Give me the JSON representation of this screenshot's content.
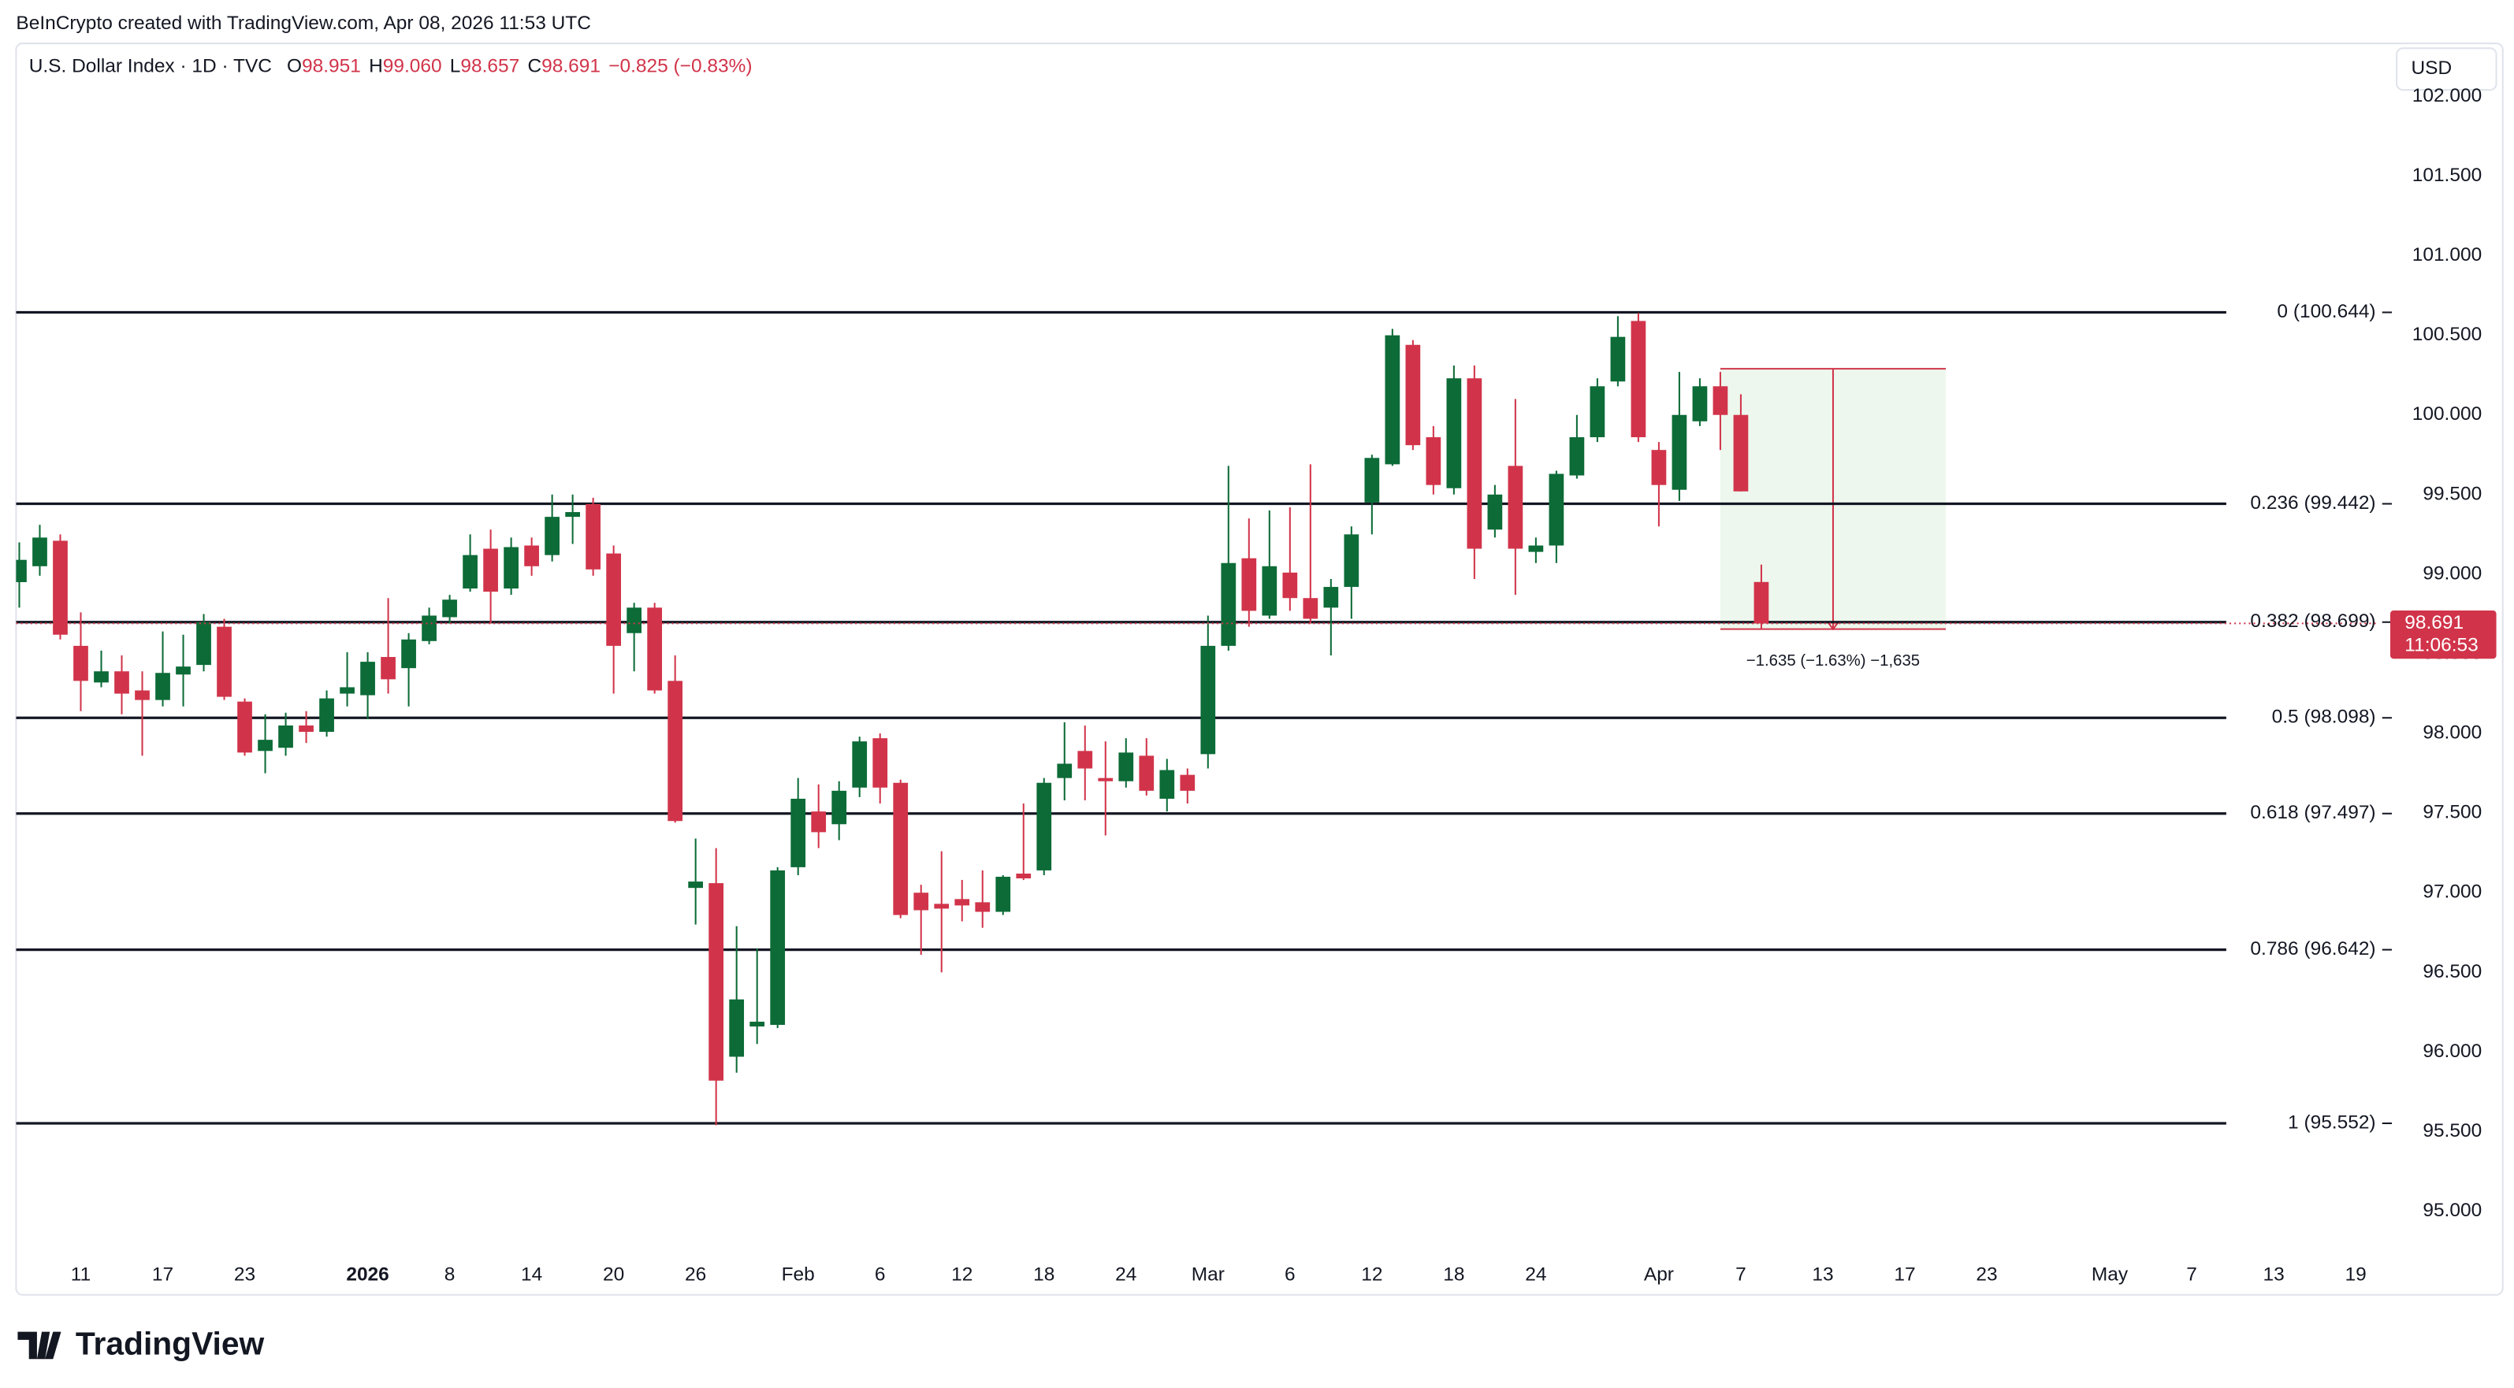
{
  "header": "BeInCrypto created with TradingView.com, Apr 08, 2026 11:53 UTC",
  "symbol": "U.S. Dollar Index · 1D · TVC",
  "legend": [
    {
      "key": "O",
      "value": "98.951"
    },
    {
      "key": "H",
      "value": "99.060"
    },
    {
      "key": "L",
      "value": "98.657"
    },
    {
      "key": "C",
      "value": "98.691"
    }
  ],
  "change_text": "−0.825 (−0.83%)",
  "currency": "USD",
  "brand": "TradingView",
  "chart_data": {
    "type": "candlestick",
    "up_color": "#0c6b37",
    "down_color": "#d1344a",
    "ohlc": {
      "open": [
        98.95,
        99.05,
        99.21,
        98.55,
        98.32,
        98.39,
        98.27,
        98.21,
        98.37,
        98.43,
        98.67,
        98.2,
        97.89,
        97.91,
        98.05,
        98.01,
        98.25,
        98.24,
        98.48,
        98.41,
        98.58,
        98.73,
        98.91,
        99.16,
        98.91,
        99.18,
        99.12,
        99.36,
        99.44,
        99.13,
        98.63,
        98.79,
        98.33,
        97.03,
        97.06,
        95.97,
        96.16,
        96.17,
        97.16,
        97.51,
        97.43,
        97.66,
        97.97,
        97.69,
        97.0,
        96.93,
        96.96,
        96.94,
        96.88,
        97.12,
        97.14,
        97.72,
        97.89,
        97.72,
        97.7,
        97.86,
        97.59,
        97.74,
        97.87,
        98.55,
        99.1,
        98.74,
        99.01,
        98.85,
        98.79,
        98.92,
        99.45,
        99.69,
        100.44,
        99.86,
        99.54,
        100.23,
        99.28,
        99.68,
        99.14,
        99.18,
        99.62,
        99.86,
        100.21,
        100.59,
        99.78,
        99.53,
        99.96,
        100.18,
        100.0,
        98.951
      ],
      "high": [
        99.2,
        99.31,
        99.25,
        98.76,
        98.52,
        98.49,
        98.39,
        98.64,
        98.62,
        98.75,
        98.72,
        98.22,
        98.12,
        98.13,
        98.14,
        98.27,
        98.51,
        98.51,
        98.85,
        98.63,
        98.79,
        98.87,
        99.25,
        99.28,
        99.23,
        99.23,
        99.5,
        99.5,
        99.48,
        99.18,
        98.82,
        98.82,
        98.49,
        97.34,
        97.28,
        96.79,
        96.65,
        97.16,
        97.72,
        97.68,
        97.7,
        97.98,
        98.0,
        97.71,
        97.05,
        97.26,
        97.08,
        97.14,
        97.11,
        97.56,
        97.72,
        98.07,
        98.05,
        97.95,
        97.97,
        97.97,
        97.84,
        97.78,
        98.74,
        99.68,
        99.35,
        99.4,
        99.42,
        99.69,
        98.97,
        99.3,
        99.75,
        100.54,
        100.47,
        99.93,
        100.31,
        100.31,
        99.56,
        100.1,
        99.23,
        99.65,
        100.0,
        100.23,
        100.62,
        100.64,
        99.83,
        100.27,
        100.23,
        100.27,
        100.13,
        99.06
      ],
      "low": [
        98.79,
        98.99,
        98.59,
        98.14,
        98.29,
        98.12,
        97.86,
        98.17,
        98.17,
        98.39,
        98.21,
        97.86,
        97.75,
        97.86,
        97.94,
        97.98,
        98.17,
        98.09,
        98.25,
        98.17,
        98.56,
        98.69,
        98.89,
        98.69,
        98.87,
        98.99,
        99.08,
        99.19,
        98.99,
        98.25,
        98.39,
        98.25,
        97.44,
        96.8,
        95.54,
        95.87,
        96.05,
        96.15,
        97.11,
        97.28,
        97.33,
        97.6,
        97.56,
        96.84,
        96.61,
        96.5,
        96.82,
        96.78,
        96.86,
        97.08,
        97.11,
        97.58,
        97.58,
        97.36,
        97.66,
        97.61,
        97.51,
        97.56,
        97.78,
        98.52,
        98.67,
        98.72,
        98.77,
        98.69,
        98.49,
        98.72,
        99.25,
        99.68,
        99.78,
        99.5,
        99.5,
        98.97,
        99.23,
        98.87,
        99.07,
        99.07,
        99.6,
        99.83,
        100.18,
        99.83,
        99.3,
        99.46,
        99.93,
        99.78,
        99.52,
        98.657
      ],
      "close": [
        99.09,
        99.23,
        98.62,
        98.33,
        98.39,
        98.25,
        98.21,
        98.38,
        98.42,
        98.7,
        98.23,
        97.88,
        97.96,
        98.05,
        98.01,
        98.22,
        98.29,
        98.45,
        98.34,
        98.59,
        98.74,
        98.84,
        99.12,
        98.89,
        99.17,
        99.05,
        99.36,
        99.39,
        99.03,
        98.55,
        98.79,
        98.27,
        97.45,
        97.07,
        95.82,
        96.33,
        96.19,
        97.14,
        97.59,
        97.38,
        97.64,
        97.95,
        97.66,
        96.86,
        96.89,
        96.9,
        96.92,
        96.88,
        97.1,
        97.09,
        97.69,
        97.81,
        97.78,
        97.7,
        97.88,
        97.64,
        97.77,
        97.64,
        98.55,
        99.07,
        98.77,
        99.05,
        98.85,
        98.72,
        98.92,
        99.25,
        99.73,
        100.5,
        99.81,
        99.56,
        100.23,
        99.16,
        99.5,
        99.16,
        99.18,
        99.63,
        99.86,
        100.18,
        100.49,
        99.86,
        99.56,
        100.0,
        100.18,
        100.0,
        99.52,
        98.691
      ]
    },
    "xlim": [
      -0.157,
      115.137
    ],
    "xticks": [
      {
        "value": 3,
        "label": "11"
      },
      {
        "value": 7,
        "label": "17"
      },
      {
        "value": 11,
        "label": "23"
      },
      {
        "value": 17,
        "label": "2026"
      },
      {
        "value": 21,
        "label": "8"
      },
      {
        "value": 25,
        "label": "14"
      },
      {
        "value": 29,
        "label": "20"
      },
      {
        "value": 33,
        "label": "26"
      },
      {
        "value": 38,
        "label": "Feb"
      },
      {
        "value": 42,
        "label": "6"
      },
      {
        "value": 46,
        "label": "12"
      },
      {
        "value": 50,
        "label": "18"
      },
      {
        "value": 54,
        "label": "24"
      },
      {
        "value": 58,
        "label": "Mar"
      },
      {
        "value": 62,
        "label": "6"
      },
      {
        "value": 66,
        "label": "12"
      },
      {
        "value": 70,
        "label": "18"
      },
      {
        "value": 74,
        "label": "24"
      },
      {
        "value": 80,
        "label": "Apr"
      },
      {
        "value": 84,
        "label": "7"
      },
      {
        "value": 88,
        "label": "13"
      },
      {
        "value": 92,
        "label": "17"
      },
      {
        "value": 96,
        "label": "23"
      },
      {
        "value": 102,
        "label": "May"
      },
      {
        "value": 106,
        "label": "7"
      },
      {
        "value": 110,
        "label": "13"
      },
      {
        "value": 114,
        "label": "19"
      }
    ],
    "ylim": [
      94.475,
      102.333
    ],
    "yticks": [
      {
        "value": 95,
        "label": "95.000"
      },
      {
        "value": 95.5,
        "label": "95.500"
      },
      {
        "value": 96,
        "label": "96.000"
      },
      {
        "value": 96.5,
        "label": "96.500"
      },
      {
        "value": 97,
        "label": "97.000"
      },
      {
        "value": 97.5,
        "label": "97.500"
      },
      {
        "value": 98,
        "label": "98.000"
      },
      {
        "value": 98.5,
        "label": "98.500"
      },
      {
        "value": 99,
        "label": "99.000"
      },
      {
        "value": 99.5,
        "label": "99.500"
      },
      {
        "value": 100,
        "label": "100.000"
      },
      {
        "value": 100.5,
        "label": "100.500"
      },
      {
        "value": 101,
        "label": "101.000"
      },
      {
        "value": 101.5,
        "label": "101.500"
      },
      {
        "value": 102,
        "label": "102.000"
      }
    ],
    "levels": [
      {
        "value": 100.644,
        "label": "0 (100.644)"
      },
      {
        "value": 99.442,
        "label": "0.236 (99.442)"
      },
      {
        "value": 98.699,
        "label": "0.382 (98.699)"
      },
      {
        "value": 98.098,
        "label": "0.5 (98.098)"
      },
      {
        "value": 97.497,
        "label": "0.618 (97.497)"
      },
      {
        "value": 96.642,
        "label": "0.786 (96.642)"
      },
      {
        "value": 95.552,
        "label": "1 (95.552)"
      }
    ],
    "measure": {
      "x_from": 83,
      "x_to": 94,
      "from": 100.29,
      "to": 98.655,
      "label": "−1.635 (−1.63%) −1,635"
    },
    "last_price_label": "98.691",
    "countdown": "11:06:53"
  }
}
